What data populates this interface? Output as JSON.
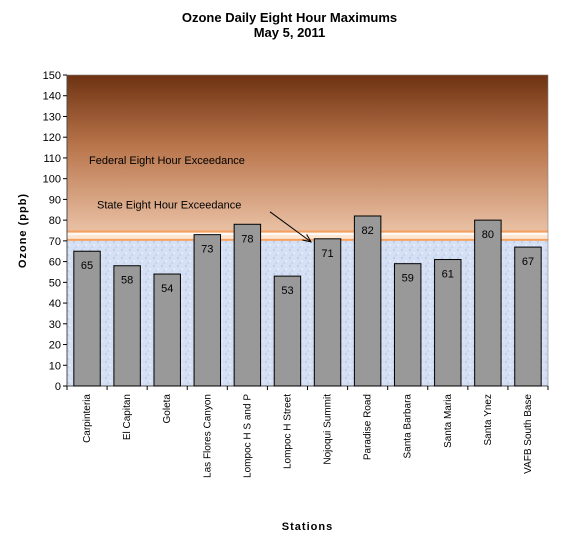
{
  "chart_data": {
    "type": "bar",
    "title": "Ozone Daily Eight Hour Maximums",
    "subtitle": "May 5, 2011",
    "xlabel": "Stations",
    "ylabel": "Ozone (ppb)",
    "ylim": [
      0,
      150
    ],
    "yticks": [
      0,
      10,
      20,
      30,
      40,
      50,
      60,
      70,
      80,
      90,
      100,
      110,
      120,
      130,
      140,
      150
    ],
    "categories": [
      "Carpinteria",
      "El Capitan",
      "Goleta",
      "Las Flores Canyon",
      "Lompoc H S and P",
      "Lompoc H Street",
      "Nojoqui Summit",
      "Paradise Road",
      "Santa Barbara",
      "Santa Maria",
      "Santa Ynez",
      "VAFB South Base"
    ],
    "values": [
      65,
      58,
      54,
      73,
      78,
      53,
      71,
      82,
      59,
      61,
      80,
      67
    ],
    "bar_color": "#999999",
    "thresholds": [
      {
        "label": "Federal Eight Hour Exceedance",
        "value": 75
      },
      {
        "label": "State Eight Hour Exceedance",
        "value": 70
      }
    ],
    "grid": false
  }
}
